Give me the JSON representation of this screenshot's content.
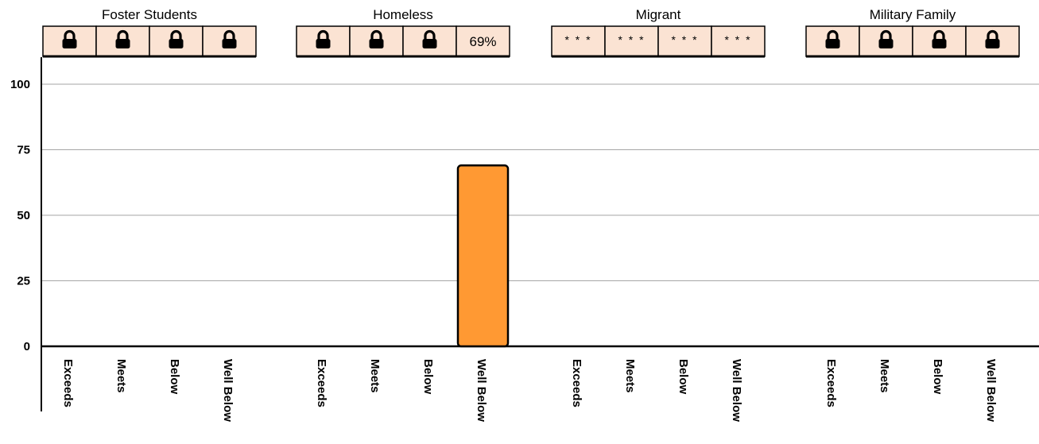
{
  "chart_data": {
    "type": "bar",
    "ylim": [
      0,
      100
    ],
    "yticks": [
      "0",
      "25",
      "50",
      "75",
      "100"
    ],
    "grid": true,
    "categories": [
      "Exceeds",
      "Meets",
      "Below",
      "Well Below"
    ],
    "groups": [
      {
        "name": "Foster Students",
        "cells": [
          {
            "kind": "lock",
            "text": ""
          },
          {
            "kind": "lock",
            "text": ""
          },
          {
            "kind": "lock",
            "text": ""
          },
          {
            "kind": "lock",
            "text": ""
          }
        ],
        "values": [
          null,
          null,
          null,
          null
        ]
      },
      {
        "name": "Homeless",
        "cells": [
          {
            "kind": "lock",
            "text": ""
          },
          {
            "kind": "lock",
            "text": ""
          },
          {
            "kind": "lock",
            "text": ""
          },
          {
            "kind": "text",
            "text": "69%"
          }
        ],
        "values": [
          null,
          null,
          null,
          69
        ]
      },
      {
        "name": "Migrant",
        "cells": [
          {
            "kind": "stars",
            "text": "* * *"
          },
          {
            "kind": "stars",
            "text": "* * *"
          },
          {
            "kind": "stars",
            "text": "* * *"
          },
          {
            "kind": "stars",
            "text": "* * *"
          }
        ],
        "values": [
          null,
          null,
          null,
          null
        ]
      },
      {
        "name": "Military Family",
        "cells": [
          {
            "kind": "lock",
            "text": ""
          },
          {
            "kind": "lock",
            "text": ""
          },
          {
            "kind": "lock",
            "text": ""
          },
          {
            "kind": "lock",
            "text": ""
          }
        ],
        "values": [
          null,
          null,
          null,
          null
        ]
      }
    ],
    "colors": {
      "bar": "#ff9933",
      "cell_bg": "#fbe3d3",
      "grid": "#a6a6a6",
      "axis": "#000000"
    }
  }
}
